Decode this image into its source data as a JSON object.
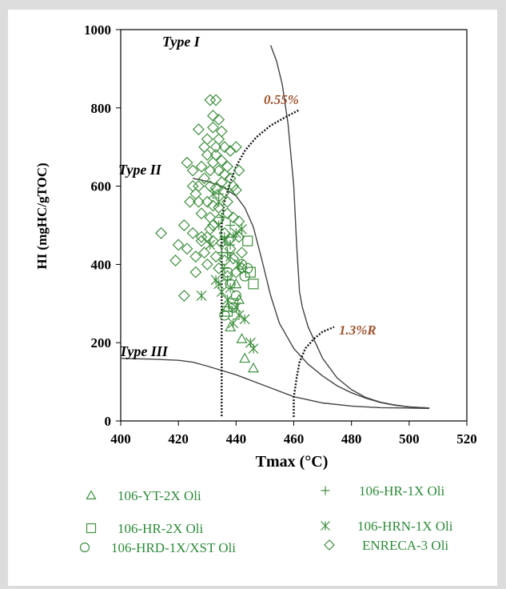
{
  "chart_data": {
    "type": "scatter",
    "title": "",
    "xlabel": "Tmax (°C)",
    "ylabel": "HI (mgHC/gTOC)",
    "xlim": [
      400,
      520
    ],
    "ylim": [
      0,
      1000
    ],
    "x_ticks": [
      "400",
      "420",
      "440",
      "460",
      "480",
      "500",
      "520"
    ],
    "y_ticks": [
      "0",
      "200",
      "400",
      "600",
      "800",
      "1000"
    ],
    "grid": false,
    "legend_position": "bottom",
    "curves": [
      {
        "name": "Type I",
        "points": [
          [
            452,
            960
          ],
          [
            454,
            920
          ],
          [
            456,
            860
          ],
          [
            458,
            760
          ],
          [
            460,
            600
          ],
          [
            461,
            450
          ],
          [
            462,
            330
          ],
          [
            463,
            290
          ],
          [
            465,
            240
          ],
          [
            470,
            160
          ],
          [
            475,
            110
          ],
          [
            480,
            80
          ],
          [
            485,
            60
          ],
          [
            490,
            48
          ],
          [
            495,
            41
          ],
          [
            500,
            36
          ],
          [
            505,
            34
          ],
          [
            507,
            33
          ]
        ]
      },
      {
        "name": "Type II",
        "points": [
          [
            425,
            620
          ],
          [
            430,
            612
          ],
          [
            435,
            600
          ],
          [
            440,
            575
          ],
          [
            443,
            545
          ],
          [
            446,
            495
          ],
          [
            449,
            410
          ],
          [
            452,
            320
          ],
          [
            455,
            250
          ],
          [
            460,
            185
          ],
          [
            465,
            145
          ],
          [
            470,
            115
          ],
          [
            475,
            90
          ],
          [
            480,
            72
          ],
          [
            485,
            58
          ],
          [
            490,
            47
          ],
          [
            495,
            40
          ],
          [
            500,
            36
          ],
          [
            505,
            34
          ],
          [
            507,
            33
          ]
        ]
      },
      {
        "name": "Type III",
        "points": [
          [
            400,
            160
          ],
          [
            410,
            158
          ],
          [
            420,
            155
          ],
          [
            425,
            150
          ],
          [
            430,
            140
          ],
          [
            440,
            118
          ],
          [
            450,
            90
          ],
          [
            460,
            62
          ],
          [
            470,
            46
          ],
          [
            480,
            38
          ],
          [
            490,
            34
          ],
          [
            500,
            33
          ],
          [
            507,
            32
          ]
        ]
      }
    ],
    "iso_lines": [
      {
        "name": "0.55%",
        "points": [
          [
            435,
            12
          ],
          [
            435,
            100
          ],
          [
            435,
            200
          ],
          [
            435,
            300
          ],
          [
            435,
            400
          ],
          [
            435,
            500
          ],
          [
            436,
            560
          ],
          [
            438,
            610
          ],
          [
            440,
            650
          ],
          [
            443,
            690
          ],
          [
            447,
            725
          ],
          [
            452,
            755
          ],
          [
            458,
            780
          ],
          [
            462,
            795
          ]
        ]
      },
      {
        "name": "1.3%R",
        "points": [
          [
            460,
            10
          ],
          [
            460,
            60
          ],
          [
            461,
            110
          ],
          [
            462,
            150
          ],
          [
            464,
            185
          ],
          [
            467,
            210
          ],
          [
            470,
            228
          ],
          [
            474,
            240
          ]
        ]
      }
    ],
    "series": [
      {
        "name": "106-YT-2X Oli",
        "marker": "triangle",
        "points": [
          [
            437,
            290
          ],
          [
            440,
            350
          ],
          [
            442,
            210
          ],
          [
            443,
            160
          ],
          [
            446,
            135
          ],
          [
            438,
            240
          ],
          [
            441,
            310
          ]
        ]
      },
      {
        "name": "106-HR-1X Oli",
        "marker": "plus",
        "points": [
          [
            434,
            580
          ],
          [
            435,
            430
          ],
          [
            436,
            470
          ],
          [
            437,
            430
          ],
          [
            438,
            500
          ],
          [
            436,
            390
          ],
          [
            438,
            450
          ],
          [
            439,
            470
          ],
          [
            435,
            520
          ],
          [
            437,
            360
          ]
        ]
      },
      {
        "name": "106-HR-2X Oli",
        "marker": "square",
        "points": [
          [
            444,
            460
          ],
          [
            445,
            380
          ],
          [
            446,
            350
          ],
          [
            437,
            280
          ],
          [
            439,
            300
          ]
        ]
      },
      {
        "name": "106-HRN-1X Oli",
        "marker": "asterisk",
        "points": [
          [
            432,
            580
          ],
          [
            434,
            560
          ],
          [
            428,
            320
          ],
          [
            431,
            450
          ],
          [
            434,
            350
          ],
          [
            435,
            330
          ],
          [
            437,
            310
          ],
          [
            439,
            250
          ],
          [
            440,
            290
          ],
          [
            441,
            270
          ],
          [
            443,
            260
          ],
          [
            445,
            200
          ],
          [
            446,
            185
          ],
          [
            440,
            480
          ],
          [
            442,
            490
          ],
          [
            438,
            420
          ],
          [
            436,
            460
          ],
          [
            434,
            500
          ],
          [
            438,
            340
          ],
          [
            441,
            400
          ],
          [
            433,
            360
          ]
        ]
      },
      {
        "name": "106-HRD-1X/XST Oli",
        "marker": "circle",
        "points": [
          [
            437,
            380
          ],
          [
            438,
            350
          ],
          [
            439,
            290
          ],
          [
            442,
            400
          ],
          [
            443,
            370
          ],
          [
            436,
            270
          ],
          [
            440,
            320
          ],
          [
            444,
            390
          ]
        ]
      },
      {
        "name": "ENRECA-3 Oli",
        "marker": "diamond",
        "points": [
          [
            431,
            820
          ],
          [
            433,
            820
          ],
          [
            432,
            780
          ],
          [
            434,
            770
          ],
          [
            432,
            750
          ],
          [
            435,
            740
          ],
          [
            427,
            745
          ],
          [
            430,
            720
          ],
          [
            434,
            720
          ],
          [
            433,
            700
          ],
          [
            436,
            700
          ],
          [
            438,
            690
          ],
          [
            440,
            700
          ],
          [
            430,
            680
          ],
          [
            432,
            660
          ],
          [
            435,
            665
          ],
          [
            428,
            650
          ],
          [
            431,
            640
          ],
          [
            434,
            640
          ],
          [
            437,
            650
          ],
          [
            425,
            640
          ],
          [
            429,
            620
          ],
          [
            431,
            600
          ],
          [
            435,
            610
          ],
          [
            438,
            620
          ],
          [
            427,
            600
          ],
          [
            433,
            595
          ],
          [
            436,
            585
          ],
          [
            440,
            590
          ],
          [
            426,
            580
          ],
          [
            430,
            560
          ],
          [
            432,
            550
          ],
          [
            434,
            545
          ],
          [
            437,
            560
          ],
          [
            424,
            560
          ],
          [
            428,
            530
          ],
          [
            431,
            520
          ],
          [
            434,
            515
          ],
          [
            437,
            530
          ],
          [
            439,
            520
          ],
          [
            441,
            510
          ],
          [
            422,
            500
          ],
          [
            425,
            480
          ],
          [
            428,
            470
          ],
          [
            430,
            470
          ],
          [
            432,
            460
          ],
          [
            435,
            455
          ],
          [
            438,
            465
          ],
          [
            441,
            470
          ],
          [
            414,
            480
          ],
          [
            420,
            450
          ],
          [
            423,
            440
          ],
          [
            426,
            420
          ],
          [
            429,
            430
          ],
          [
            433,
            420
          ],
          [
            436,
            410
          ],
          [
            439,
            415
          ],
          [
            442,
            430
          ],
          [
            419,
            410
          ],
          [
            422,
            320
          ],
          [
            426,
            380
          ],
          [
            430,
            400
          ],
          [
            434,
            390
          ],
          [
            437,
            370
          ],
          [
            440,
            380
          ],
          [
            442,
            390
          ],
          [
            428,
            460
          ],
          [
            431,
            490
          ],
          [
            436,
            480
          ],
          [
            438,
            440
          ],
          [
            425,
            600
          ],
          [
            433,
            680
          ],
          [
            436,
            630
          ],
          [
            429,
            700
          ],
          [
            439,
            600
          ],
          [
            441,
            640
          ],
          [
            423,
            660
          ],
          [
            427,
            560
          ],
          [
            432,
            500
          ]
        ]
      }
    ],
    "marker_color": "#3f8f3f"
  }
}
